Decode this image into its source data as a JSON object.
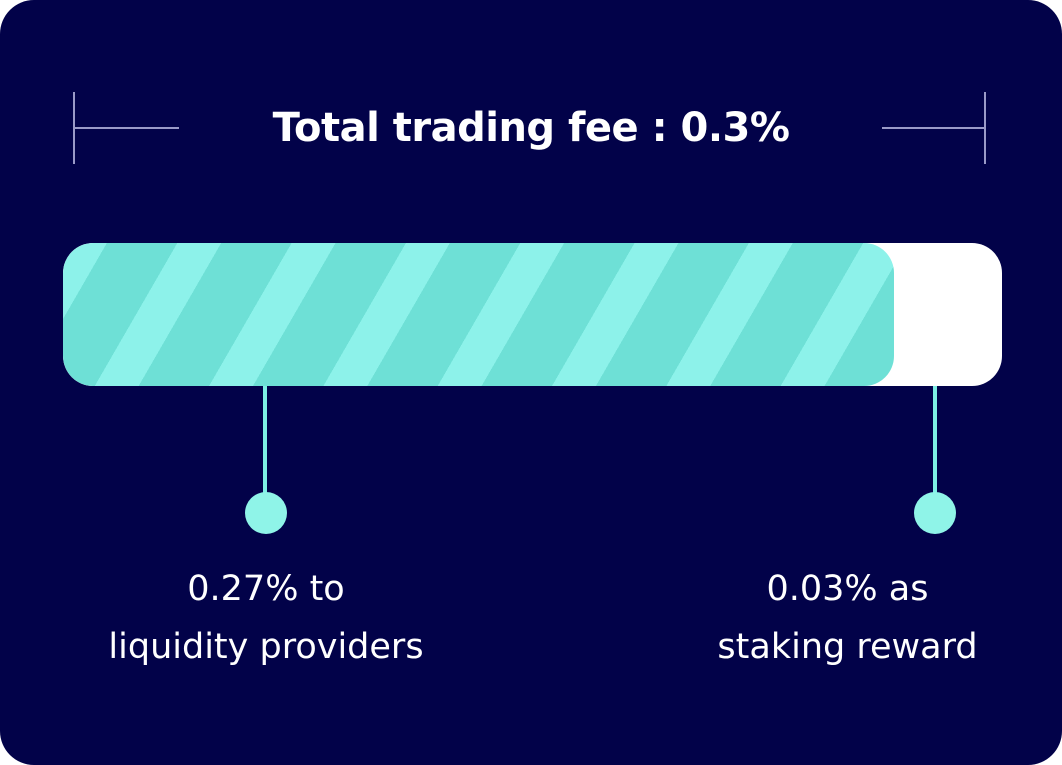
{
  "title": "Total trading fee : 0.3%",
  "chart_data": {
    "type": "bar",
    "total_label": "Total trading fee : 0.3%",
    "segments": [
      {
        "value": 0.27,
        "label_line1": "0.27% to",
        "label_line2": "liquidity providers",
        "color": "#6ee0d6"
      },
      {
        "value": 0.03,
        "label_line1": "0.03% as",
        "label_line2": "staking reward",
        "color": "#ffffff"
      }
    ],
    "total": 0.3
  },
  "colors": {
    "background": "#020249",
    "accent": "#8df2ea",
    "text": "#ffffff"
  }
}
